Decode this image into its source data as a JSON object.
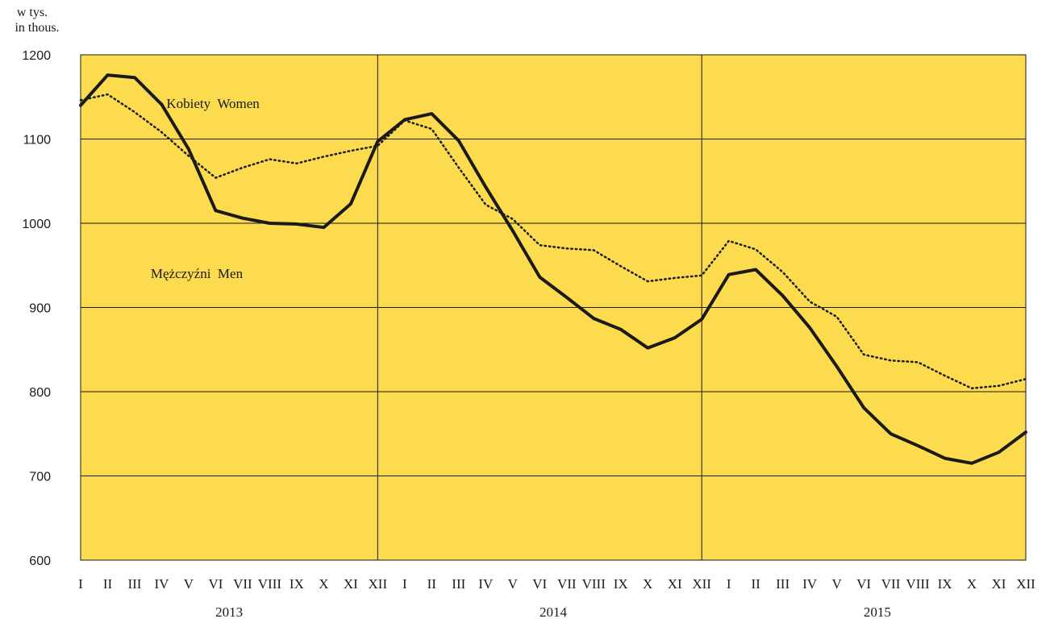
{
  "unit_label_pl": "w tys.",
  "unit_label_en": "in thous.",
  "colors": {
    "plot_background": "#FCDB4E",
    "grid": "#1a1a1a",
    "series": "#1a1a1a"
  },
  "chart_data": {
    "type": "line",
    "title": "",
    "xlabel": "",
    "ylabel": "w tys. / in thous.",
    "ylim": [
      600,
      1200
    ],
    "yticks": [
      600,
      700,
      800,
      900,
      1000,
      1100,
      1200
    ],
    "grid": true,
    "x": [
      "I",
      "II",
      "III",
      "IV",
      "V",
      "VI",
      "VII",
      "VIII",
      "IX",
      "X",
      "XI",
      "XII",
      "I",
      "II",
      "III",
      "IV",
      "V",
      "VI",
      "VII",
      "VIII",
      "IX",
      "X",
      "XI",
      "XII",
      "I",
      "II",
      "III",
      "IV",
      "V",
      "VI",
      "VII",
      "VIII",
      "IX",
      "X",
      "XI",
      "XII"
    ],
    "year_groups": [
      {
        "label": "2013",
        "start": 0,
        "end": 11
      },
      {
        "label": "2014",
        "start": 12,
        "end": 23
      },
      {
        "label": "2015",
        "start": 24,
        "end": 35
      }
    ],
    "series": [
      {
        "name": "Kobiety  Women",
        "style": "dotted",
        "values": [
          1146,
          1153,
          1132,
          1108,
          1080,
          1054,
          1066,
          1076,
          1071,
          1079,
          1086,
          1092,
          1122,
          1112,
          1066,
          1022,
          1005,
          974,
          970,
          968,
          949,
          931,
          935,
          938,
          979,
          969,
          942,
          907,
          889,
          844,
          837,
          835,
          819,
          804,
          807,
          815
        ]
      },
      {
        "name": "Mężczyźni  Men",
        "style": "solid",
        "values": [
          1140,
          1176,
          1173,
          1141,
          1088,
          1015,
          1006,
          1000,
          999,
          995,
          1023,
          1097,
          1123,
          1130,
          1098,
          1043,
          991,
          936,
          912,
          887,
          874,
          852,
          864,
          886,
          939,
          945,
          914,
          876,
          830,
          781,
          750,
          736,
          721,
          715,
          728,
          752
        ]
      }
    ],
    "annotations": [
      {
        "text": "Kobiety  Women",
        "x_index": 4.9,
        "y": 1137
      },
      {
        "text": "Mężczyźni  Men",
        "x_index": 4.3,
        "y": 935
      }
    ]
  }
}
